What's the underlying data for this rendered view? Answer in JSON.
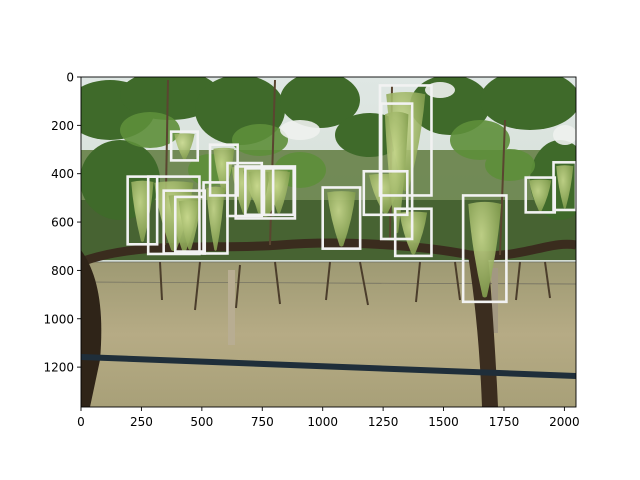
{
  "axes": {
    "x_ticks": [
      "0",
      "250",
      "500",
      "750",
      "1000",
      "1250",
      "1500",
      "1750",
      "2000"
    ],
    "y_ticks": [
      "0",
      "200",
      "400",
      "600",
      "800",
      "1000",
      "1200"
    ],
    "x_tick_values": [
      0,
      250,
      500,
      750,
      1000,
      1250,
      1500,
      1750,
      2000
    ],
    "y_tick_values": [
      0,
      200,
      400,
      600,
      800,
      1000,
      1200
    ],
    "xlim": [
      0,
      2048
    ],
    "ylim": [
      1365,
      0
    ]
  },
  "image": {
    "content": "vineyard-grape-clusters-photo",
    "box_color": "#f2f2f2",
    "detections": [
      {
        "x0": 373,
        "y0": 226,
        "x1": 483,
        "y1": 345
      },
      {
        "x0": 534,
        "y0": 280,
        "x1": 648,
        "y1": 490
      },
      {
        "x0": 193,
        "y0": 412,
        "x1": 315,
        "y1": 692
      },
      {
        "x0": 278,
        "y0": 412,
        "x1": 490,
        "y1": 732
      },
      {
        "x0": 342,
        "y0": 470,
        "x1": 512,
        "y1": 730
      },
      {
        "x0": 390,
        "y0": 496,
        "x1": 510,
        "y1": 722
      },
      {
        "x0": 507,
        "y0": 436,
        "x1": 606,
        "y1": 730
      },
      {
        "x0": 606,
        "y0": 356,
        "x1": 748,
        "y1": 575
      },
      {
        "x0": 640,
        "y0": 370,
        "x1": 885,
        "y1": 585
      },
      {
        "x0": 680,
        "y0": 378,
        "x1": 795,
        "y1": 570
      },
      {
        "x0": 757,
        "y0": 378,
        "x1": 880,
        "y1": 570
      },
      {
        "x0": 1000,
        "y0": 457,
        "x1": 1155,
        "y1": 710
      },
      {
        "x0": 1170,
        "y0": 390,
        "x1": 1350,
        "y1": 570
      },
      {
        "x0": 1237,
        "y0": 35,
        "x1": 1450,
        "y1": 490
      },
      {
        "x0": 1242,
        "y0": 110,
        "x1": 1370,
        "y1": 670
      },
      {
        "x0": 1300,
        "y0": 545,
        "x1": 1450,
        "y1": 740
      },
      {
        "x0": 1581,
        "y0": 490,
        "x1": 1760,
        "y1": 930
      },
      {
        "x0": 1840,
        "y0": 416,
        "x1": 1960,
        "y1": 560
      },
      {
        "x0": 1955,
        "y0": 353,
        "x1": 2048,
        "y1": 550
      }
    ]
  }
}
